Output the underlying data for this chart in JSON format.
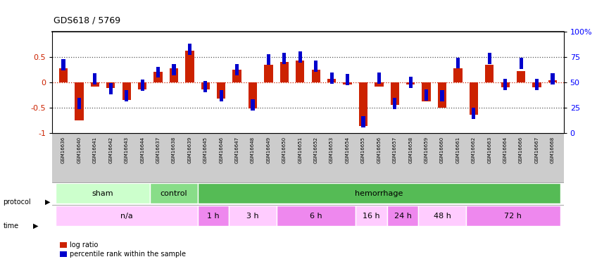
{
  "title": "GDS618 / 5769",
  "samples": [
    "GSM16636",
    "GSM16640",
    "GSM16641",
    "GSM16642",
    "GSM16643",
    "GSM16644",
    "GSM16637",
    "GSM16638",
    "GSM16639",
    "GSM16645",
    "GSM16646",
    "GSM16647",
    "GSM16648",
    "GSM16649",
    "GSM16650",
    "GSM16651",
    "GSM16652",
    "GSM16653",
    "GSM16654",
    "GSM16655",
    "GSM16656",
    "GSM16657",
    "GSM16658",
    "GSM16659",
    "GSM16660",
    "GSM16661",
    "GSM16662",
    "GSM16663",
    "GSM16664",
    "GSM16666",
    "GSM16667",
    "GSM16668"
  ],
  "log_ratio": [
    0.27,
    -0.75,
    -0.08,
    -0.12,
    -0.35,
    -0.14,
    0.2,
    0.27,
    0.62,
    -0.14,
    -0.32,
    0.25,
    -0.52,
    0.35,
    0.4,
    0.43,
    0.25,
    0.07,
    -0.04,
    -0.87,
    -0.08,
    -0.45,
    -0.04,
    -0.38,
    -0.5,
    0.28,
    -0.65,
    0.35,
    -0.1,
    0.22,
    -0.1,
    0.04
  ],
  "percentile_val": [
    0.35,
    -0.42,
    0.07,
    -0.13,
    -0.27,
    -0.06,
    0.2,
    0.25,
    0.65,
    -0.09,
    -0.27,
    0.25,
    -0.45,
    0.45,
    0.47,
    0.5,
    0.32,
    0.08,
    0.05,
    -0.78,
    0.08,
    -0.42,
    0.0,
    -0.25,
    -0.27,
    0.38,
    -0.62,
    0.47,
    -0.05,
    0.37,
    -0.05,
    0.07
  ],
  "protocol_groups": [
    {
      "label": "sham",
      "start": 0,
      "end": 6,
      "color": "#ccffcc"
    },
    {
      "label": "control",
      "start": 6,
      "end": 9,
      "color": "#88dd88"
    },
    {
      "label": "hemorrhage",
      "start": 9,
      "end": 32,
      "color": "#55bb55"
    }
  ],
  "time_groups": [
    {
      "label": "n/a",
      "start": 0,
      "end": 9,
      "color": "#ffccff"
    },
    {
      "label": "1 h",
      "start": 9,
      "end": 11,
      "color": "#ee88ee"
    },
    {
      "label": "3 h",
      "start": 11,
      "end": 14,
      "color": "#ffccff"
    },
    {
      "label": "6 h",
      "start": 14,
      "end": 19,
      "color": "#ee88ee"
    },
    {
      "label": "16 h",
      "start": 19,
      "end": 21,
      "color": "#ffccff"
    },
    {
      "label": "24 h",
      "start": 21,
      "end": 23,
      "color": "#ee88ee"
    },
    {
      "label": "48 h",
      "start": 23,
      "end": 26,
      "color": "#ffccff"
    },
    {
      "label": "72 h",
      "start": 26,
      "end": 32,
      "color": "#ee88ee"
    }
  ],
  "ylim": [
    -1,
    1
  ],
  "yticks_left": [
    -1,
    -0.5,
    0,
    0.5
  ],
  "yticks_right": [
    0,
    25,
    50,
    75,
    100
  ],
  "bar_color_red": "#cc2200",
  "bar_color_blue": "#0000cc",
  "bg_xtick_color": "#cccccc",
  "bar_width": 0.55,
  "blue_sq_size": 0.22
}
